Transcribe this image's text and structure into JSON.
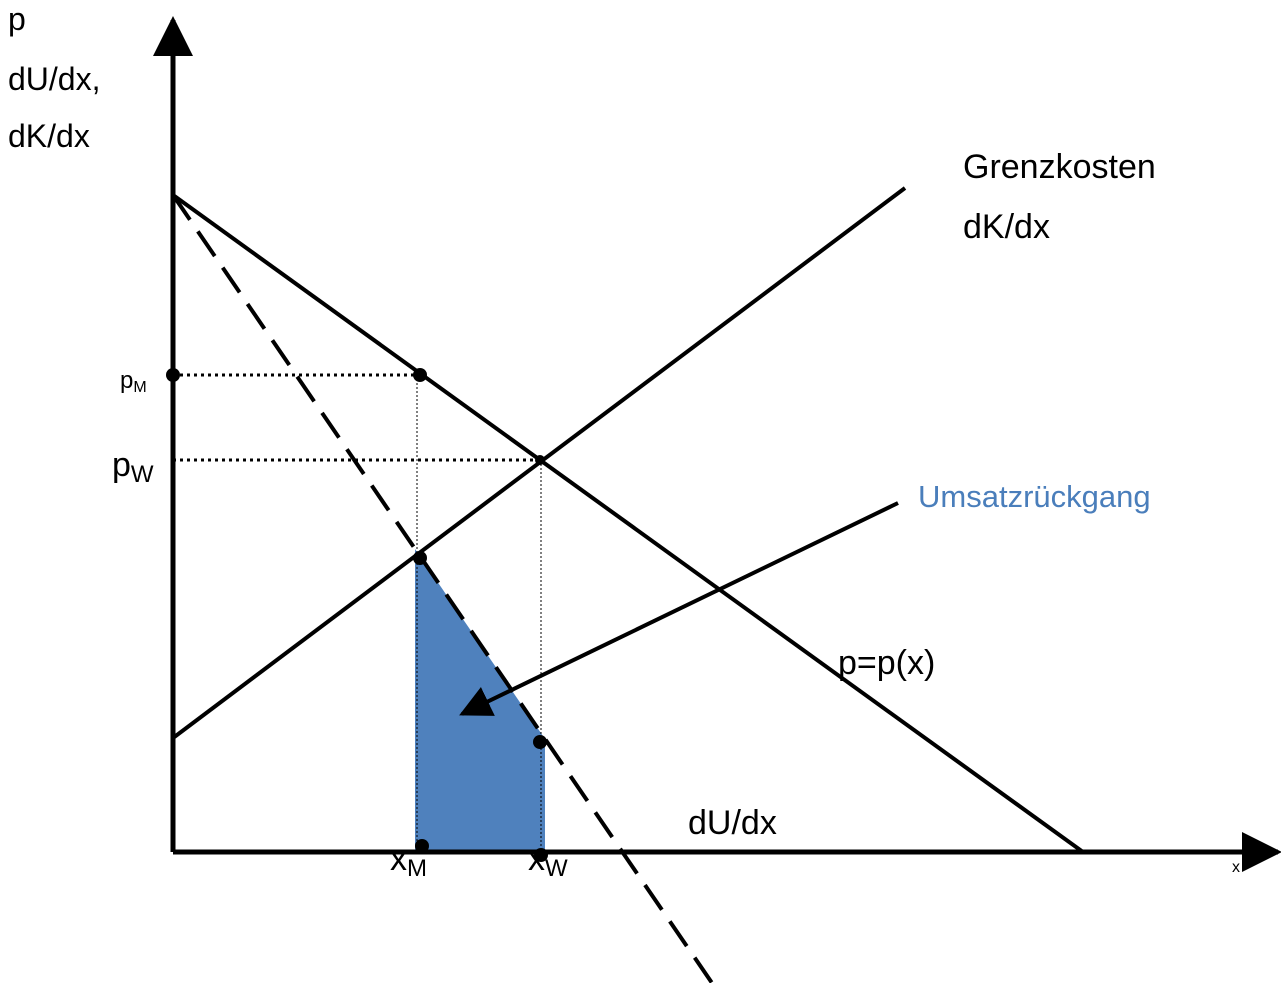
{
  "y_axis_label": [
    "p",
    "dU/dx,",
    "dK/dx"
  ],
  "x_axis_label": "x",
  "curves": {
    "marginal_cost": [
      "Grenzkosten",
      "dK/dx"
    ],
    "demand": "p=p(x)",
    "marginal_revenue": "dU/dx"
  },
  "annotation": "Umsatzrückgang",
  "points": {
    "p_m": {
      "base": "p",
      "sub": "M"
    },
    "p_w": {
      "base": "p",
      "sub": "W"
    },
    "x_m": {
      "base": "x",
      "sub": "M"
    },
    "x_w": {
      "base": "x",
      "sub": "W"
    }
  }
}
